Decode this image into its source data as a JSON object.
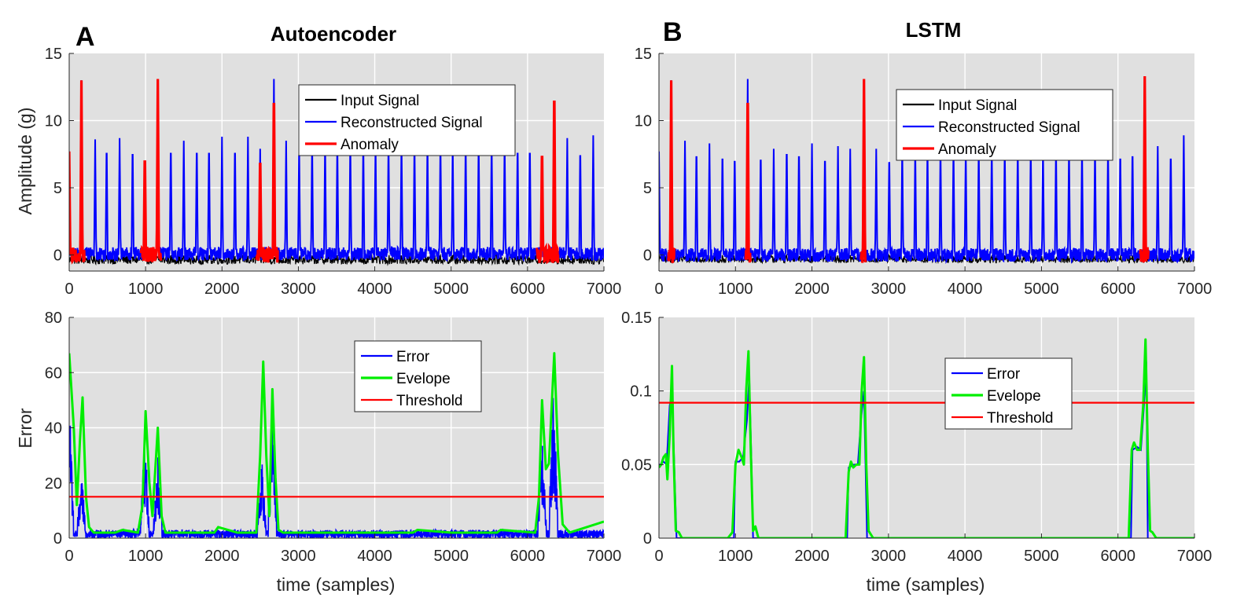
{
  "figure": {
    "panels": [
      {
        "key": "top_left",
        "panel_label": "A",
        "title": "Autoencoder"
      },
      {
        "key": "top_right",
        "panel_label": "B",
        "title": "LSTM"
      }
    ]
  },
  "chart_data": [
    {
      "id": "autoencoder_signal",
      "type": "line",
      "panel_label": "A",
      "title": "Autoencoder",
      "xlabel": "",
      "ylabel": "Amplitude (g)",
      "xlim": [
        0,
        7000
      ],
      "ylim": [
        -1.2,
        15
      ],
      "xticks": [
        0,
        1000,
        2000,
        3000,
        4000,
        5000,
        6000,
        7000
      ],
      "yticks": [
        0,
        5,
        10,
        15
      ],
      "grid": true,
      "legend_position": "top-right",
      "colors": {
        "Input Signal": "#000000",
        "Reconstructed Signal": "#0000ff",
        "Anomaly": "#ff0000",
        "background": "#e0e0e0"
      },
      "series": [
        {
          "name": "Input Signal",
          "style": "noise",
          "baseline": -0.35,
          "noise": 0.7
        },
        {
          "name": "Reconstructed Signal",
          "style": "spikes",
          "baseline": 0.1,
          "noise": 1.0,
          "peaks": [
            [
              0,
              7.7
            ],
            [
              160,
              13.0
            ],
            [
              340,
              8.6
            ],
            [
              490,
              8.8
            ],
            [
              660,
              8.7
            ],
            [
              830,
              8.7
            ],
            [
              990,
              8.1
            ],
            [
              1160,
              13.1
            ],
            [
              1330,
              8.8
            ],
            [
              1500,
              8.5
            ],
            [
              1670,
              8.8
            ],
            [
              1830,
              8.8
            ],
            [
              2000,
              8.8
            ],
            [
              2170,
              8.8
            ],
            [
              2340,
              8.8
            ],
            [
              2500,
              7.9
            ],
            [
              2680,
              13.1
            ],
            [
              2840,
              8.5
            ],
            [
              3010,
              8.6
            ],
            [
              3180,
              8.8
            ],
            [
              3350,
              8.8
            ],
            [
              3510,
              8.8
            ],
            [
              3680,
              8.8
            ],
            [
              3850,
              8.8
            ],
            [
              4010,
              8.8
            ],
            [
              4180,
              8.8
            ],
            [
              4350,
              8.8
            ],
            [
              4520,
              8.8
            ],
            [
              4690,
              8.8
            ],
            [
              4860,
              8.8
            ],
            [
              5020,
              8.8
            ],
            [
              5190,
              8.8
            ],
            [
              5360,
              8.8
            ],
            [
              5530,
              8.8
            ],
            [
              5700,
              8.8
            ],
            [
              5870,
              8.8
            ],
            [
              6030,
              8.8
            ],
            [
              6190,
              8.5
            ],
            [
              6350,
              13.3
            ],
            [
              6520,
              8.7
            ],
            [
              6690,
              8.6
            ],
            [
              6860,
              8.9
            ]
          ]
        },
        {
          "name": "Anomaly",
          "style": "segments",
          "ranges": [
            [
              0,
              200
            ],
            [
              940,
              1200
            ],
            [
              2450,
              2730
            ],
            [
              6120,
              6400
            ]
          ],
          "peaks": [
            [
              0,
              7.7
            ],
            [
              160,
              13.0
            ],
            [
              990,
              8.1
            ],
            [
              1160,
              13.1
            ],
            [
              2500,
              7.9
            ],
            [
              2680,
              13.1
            ],
            [
              6190,
              8.5
            ],
            [
              6350,
              13.3
            ]
          ]
        }
      ]
    },
    {
      "id": "lstm_signal",
      "type": "line",
      "panel_label": "B",
      "title": "LSTM",
      "xlabel": "",
      "ylabel": "",
      "xlim": [
        0,
        7000
      ],
      "ylim": [
        -1.2,
        15
      ],
      "xticks": [
        0,
        1000,
        2000,
        3000,
        4000,
        5000,
        6000,
        7000
      ],
      "yticks": [
        0,
        5,
        10,
        15
      ],
      "grid": true,
      "legend_position": "top-right",
      "colors": {
        "Input Signal": "#000000",
        "Reconstructed Signal": "#0000ff",
        "Anomaly": "#ff0000",
        "background": "#e0e0e0"
      },
      "series": [
        {
          "name": "Input Signal",
          "style": "noise",
          "baseline": -0.3,
          "noise": 0.6
        },
        {
          "name": "Reconstructed Signal",
          "style": "spikes",
          "baseline": 0.0,
          "noise": 1.0,
          "peaks": [
            [
              0,
              7.7
            ],
            [
              160,
              13.0
            ],
            [
              340,
              8.5
            ],
            [
              490,
              8.5
            ],
            [
              660,
              8.3
            ],
            [
              830,
              8.3
            ],
            [
              990,
              8.1
            ],
            [
              1160,
              13.1
            ],
            [
              1330,
              8.2
            ],
            [
              1500,
              7.9
            ],
            [
              1670,
              8.7
            ],
            [
              1830,
              8.5
            ],
            [
              2000,
              8.3
            ],
            [
              2170,
              8.1
            ],
            [
              2340,
              8.1
            ],
            [
              2500,
              7.9
            ],
            [
              2680,
              13.1
            ],
            [
              2840,
              7.9
            ],
            [
              3010,
              8.0
            ],
            [
              3180,
              8.2
            ],
            [
              3350,
              8.3
            ],
            [
              3510,
              8.3
            ],
            [
              3680,
              8.3
            ],
            [
              3850,
              8.3
            ],
            [
              4010,
              8.3
            ],
            [
              4180,
              8.3
            ],
            [
              4350,
              8.3
            ],
            [
              4520,
              8.3
            ],
            [
              4690,
              8.3
            ],
            [
              4860,
              8.3
            ],
            [
              5020,
              8.3
            ],
            [
              5190,
              8.3
            ],
            [
              5360,
              8.3
            ],
            [
              5530,
              8.3
            ],
            [
              5700,
              8.3
            ],
            [
              5870,
              8.3
            ],
            [
              6030,
              8.3
            ],
            [
              6190,
              8.5
            ],
            [
              6350,
              13.3
            ],
            [
              6520,
              8.1
            ],
            [
              6690,
              8.3
            ],
            [
              6860,
              8.9
            ]
          ]
        },
        {
          "name": "Anomaly",
          "style": "segments",
          "ranges": [
            [
              120,
              200
            ],
            [
              1130,
              1200
            ],
            [
              2640,
              2700
            ],
            [
              6290,
              6400
            ]
          ],
          "peaks": [
            [
              160,
              13.0
            ],
            [
              1160,
              13.1
            ],
            [
              2680,
              13.1
            ],
            [
              6350,
              13.3
            ]
          ]
        }
      ]
    },
    {
      "id": "autoencoder_error",
      "type": "line",
      "xlabel": "time (samples)",
      "ylabel": "Error",
      "xlim": [
        0,
        7000
      ],
      "ylim": [
        0,
        80
      ],
      "xticks": [
        0,
        1000,
        2000,
        3000,
        4000,
        5000,
        6000,
        7000
      ],
      "yticks": [
        0,
        20,
        40,
        60,
        80
      ],
      "grid": true,
      "legend_position": "top-right",
      "colors": {
        "Error": "#0000ff",
        "Evelope": "#00ee00",
        "Threshold": "#ff0000",
        "background": "#e0e0e0"
      },
      "series": [
        {
          "name": "Error",
          "style": "bursts",
          "base": 1.5,
          "bursts": [
            [
              0,
              55
            ],
            [
              160,
              24
            ],
            [
              990,
              38
            ],
            [
              1160,
              30
            ],
            [
              2520,
              30
            ],
            [
              2660,
              50
            ],
            [
              6190,
              40
            ],
            [
              6340,
              55
            ]
          ]
        },
        {
          "name": "Evelope",
          "x": [
            0,
            60,
            100,
            140,
            175,
            220,
            260,
            320,
            600,
            700,
            900,
            960,
            1000,
            1050,
            1090,
            1160,
            1210,
            1260,
            1300,
            1500,
            1900,
            1950,
            2200,
            2450,
            2500,
            2540,
            2580,
            2620,
            2660,
            2700,
            2740,
            2800,
            3000,
            4500,
            4560,
            5000,
            5600,
            5650,
            6100,
            6150,
            6190,
            6240,
            6280,
            6350,
            6400,
            6460,
            6550,
            7000
          ],
          "values": [
            67,
            40,
            12,
            35,
            51,
            15,
            4,
            2,
            2,
            3,
            2,
            12,
            46,
            20,
            8,
            40,
            8,
            2,
            2,
            2,
            2,
            4,
            2,
            2,
            30,
            64,
            30,
            8,
            54,
            22,
            3,
            2,
            2,
            2,
            3,
            2,
            2,
            3,
            2,
            15,
            50,
            25,
            27,
            67,
            30,
            5,
            2,
            6
          ]
        },
        {
          "name": "Threshold",
          "x": [
            0,
            7000
          ],
          "values": [
            15,
            15
          ]
        }
      ]
    },
    {
      "id": "lstm_error",
      "type": "line",
      "xlabel": "time (samples)",
      "ylabel": "",
      "xlim": [
        0,
        7000
      ],
      "ylim": [
        0,
        0.15
      ],
      "xticks": [
        0,
        1000,
        2000,
        3000,
        4000,
        5000,
        6000,
        7000
      ],
      "yticks": [
        0,
        0.05,
        0.1,
        0.15
      ],
      "ytick_labels": [
        "0",
        "0.05",
        "0.1",
        "0.15"
      ],
      "grid": true,
      "legend_position": "top-right",
      "colors": {
        "Error": "#0000ff",
        "Evelope": "#00ee00",
        "Threshold": "#ff0000",
        "background": "#e0e0e0"
      },
      "series": [
        {
          "name": "Error",
          "style": "blocks",
          "blocks": [
            [
              0,
              200,
              0.05
            ],
            [
              1000,
              1210,
              0.052
            ],
            [
              2470,
              2700,
              0.048
            ],
            [
              6180,
              6380,
              0.062
            ]
          ],
          "x": [
            0,
            20,
            60,
            100,
            140,
            170,
            200,
            230,
            980,
            1000,
            1050,
            1100,
            1150,
            1180,
            1210,
            1230,
            2460,
            2480,
            2550,
            2600,
            2640,
            2680,
            2700,
            2720,
            6170,
            6190,
            6250,
            6300,
            6340,
            6370,
            6390
          ],
          "values": [
            0.05,
            0.05,
            0.052,
            0.05,
            0.09,
            0.1,
            0.05,
            0,
            0,
            0.052,
            0.052,
            0.055,
            0.08,
            0.11,
            0.05,
            0,
            0,
            0.048,
            0.05,
            0.05,
            0.08,
            0.1,
            0.05,
            0,
            0,
            0.06,
            0.062,
            0.06,
            0.09,
            0.12,
            0
          ]
        },
        {
          "name": "Evelope",
          "x": [
            0,
            30,
            60,
            90,
            110,
            140,
            170,
            190,
            220,
            260,
            300,
            900,
            960,
            1000,
            1040,
            1080,
            1110,
            1140,
            1170,
            1200,
            1230,
            1260,
            1300,
            1350,
            2440,
            2480,
            2510,
            2540,
            2580,
            2620,
            2650,
            2680,
            2710,
            2740,
            2800,
            6140,
            6180,
            6210,
            6250,
            6290,
            6330,
            6360,
            6390,
            6420,
            6450,
            6500,
            7000
          ],
          "values": [
            0.048,
            0.05,
            0.055,
            0.057,
            0.04,
            0.07,
            0.117,
            0.06,
            0.005,
            0.004,
            0.0,
            0.0,
            0.004,
            0.05,
            0.06,
            0.055,
            0.05,
            0.1,
            0.127,
            0.06,
            0.005,
            0.008,
            0.0,
            0.0,
            0.0,
            0.045,
            0.052,
            0.048,
            0.05,
            0.05,
            0.1,
            0.123,
            0.05,
            0.005,
            0.0,
            0.0,
            0.06,
            0.065,
            0.06,
            0.06,
            0.09,
            0.135,
            0.06,
            0.005,
            0.004,
            0.0,
            0.0
          ]
        },
        {
          "name": "Threshold",
          "x": [
            0,
            7000
          ],
          "values": [
            0.092,
            0.092
          ]
        }
      ]
    }
  ]
}
